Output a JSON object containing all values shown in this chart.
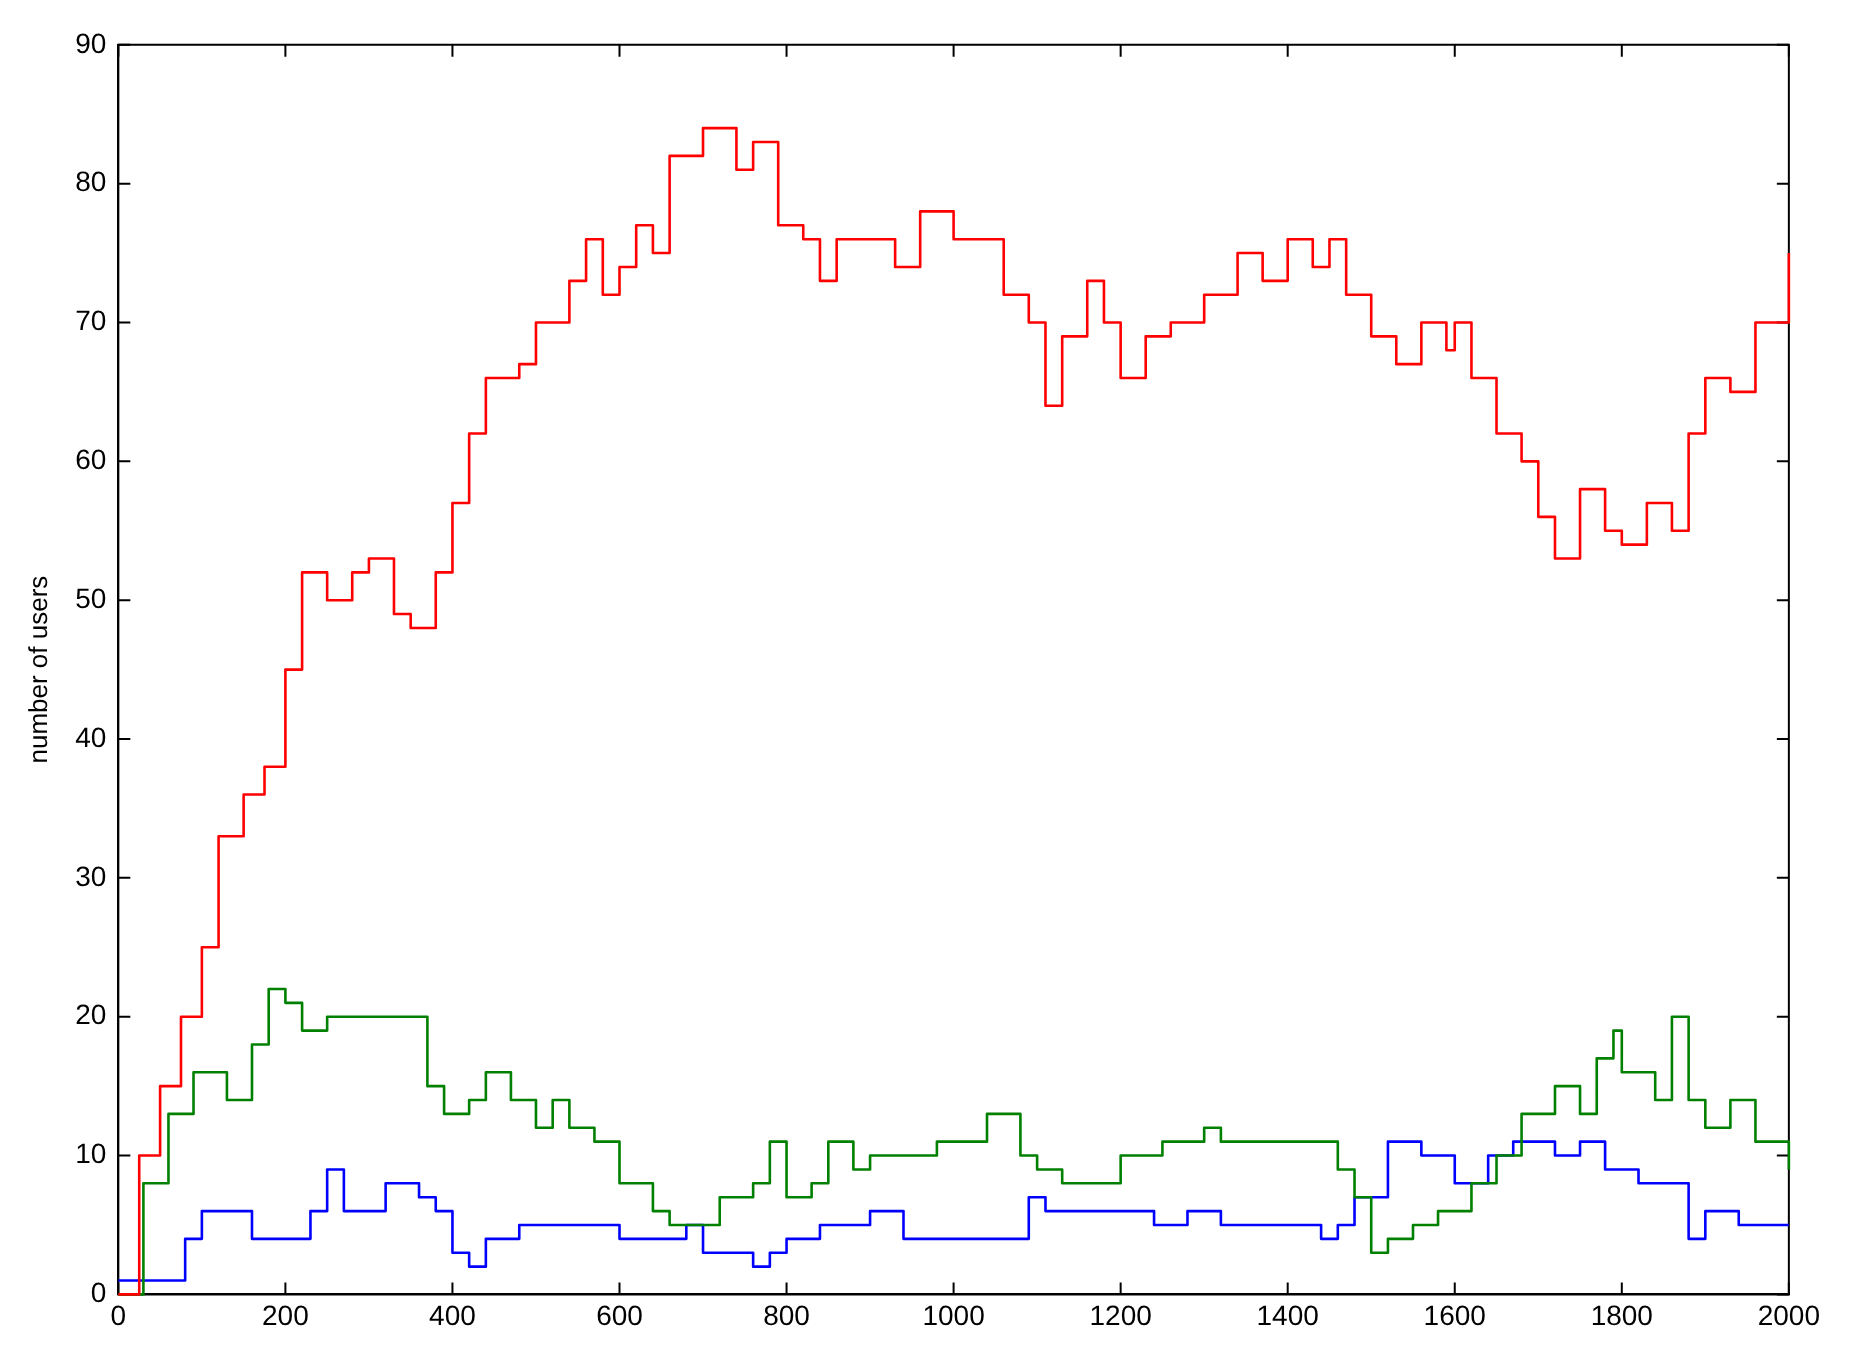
{
  "chart_data": {
    "type": "step",
    "ylabel": "number of users",
    "xlim": [
      0,
      2000
    ],
    "xticks": [
      0,
      200,
      400,
      600,
      800,
      1000,
      1200,
      1400,
      1600,
      1800,
      2000
    ],
    "ylim": [
      0,
      90
    ],
    "yticks": [
      0,
      10,
      20,
      30,
      40,
      50,
      60,
      70,
      80,
      90
    ],
    "grid": false,
    "legend": false,
    "series": [
      {
        "color": "#ff0000",
        "x": [
          0,
          25,
          50,
          75,
          100,
          120,
          150,
          175,
          200,
          220,
          250,
          280,
          300,
          330,
          350,
          380,
          400,
          420,
          440,
          480,
          500,
          540,
          560,
          580,
          600,
          620,
          640,
          660,
          700,
          740,
          760,
          790,
          820,
          840,
          860,
          900,
          930,
          960,
          1000,
          1040,
          1060,
          1090,
          1110,
          1130,
          1160,
          1180,
          1200,
          1230,
          1260,
          1300,
          1340,
          1370,
          1400,
          1430,
          1450,
          1470,
          1500,
          1530,
          1560,
          1590,
          1600,
          1620,
          1650,
          1680,
          1700,
          1720,
          1750,
          1780,
          1800,
          1830,
          1860,
          1880,
          1900,
          1930,
          1960,
          2000
        ],
        "values": [
          0,
          10,
          15,
          20,
          25,
          33,
          36,
          38,
          45,
          52,
          50,
          52,
          53,
          49,
          48,
          52,
          57,
          62,
          66,
          67,
          70,
          73,
          76,
          72,
          74,
          77,
          75,
          82,
          84,
          81,
          83,
          77,
          76,
          73,
          76,
          76,
          74,
          78,
          76,
          76,
          72,
          70,
          64,
          69,
          73,
          70,
          66,
          69,
          70,
          72,
          75,
          73,
          76,
          74,
          76,
          72,
          69,
          67,
          70,
          68,
          70,
          66,
          62,
          60,
          56,
          53,
          58,
          55,
          54,
          57,
          55,
          62,
          66,
          65,
          70,
          75
        ]
      },
      {
        "color": "#008000",
        "x": [
          0,
          30,
          60,
          90,
          110,
          130,
          160,
          180,
          200,
          220,
          250,
          300,
          350,
          370,
          390,
          420,
          440,
          470,
          500,
          520,
          540,
          570,
          600,
          640,
          660,
          700,
          720,
          760,
          780,
          800,
          830,
          850,
          880,
          900,
          950,
          980,
          1000,
          1040,
          1060,
          1080,
          1100,
          1130,
          1160,
          1190,
          1200,
          1250,
          1300,
          1320,
          1370,
          1400,
          1440,
          1460,
          1480,
          1500,
          1520,
          1550,
          1580,
          1620,
          1650,
          1680,
          1720,
          1750,
          1770,
          1790,
          1800,
          1820,
          1840,
          1860,
          1880,
          1900,
          1930,
          1960,
          2000
        ],
        "values": [
          0,
          8,
          13,
          16,
          16,
          14,
          18,
          22,
          21,
          19,
          20,
          20,
          20,
          15,
          13,
          14,
          16,
          14,
          12,
          14,
          12,
          11,
          8,
          6,
          5,
          5,
          7,
          8,
          11,
          7,
          8,
          11,
          9,
          10,
          10,
          11,
          11,
          13,
          13,
          10,
          9,
          8,
          8,
          8,
          10,
          11,
          12,
          11,
          11,
          11,
          11,
          9,
          7,
          3,
          4,
          5,
          6,
          8,
          10,
          13,
          15,
          13,
          17,
          19,
          16,
          16,
          14,
          20,
          14,
          12,
          14,
          11,
          9
        ]
      },
      {
        "color": "#0000ff",
        "x": [
          0,
          60,
          80,
          100,
          130,
          160,
          200,
          230,
          250,
          270,
          300,
          320,
          360,
          380,
          400,
          420,
          440,
          480,
          560,
          600,
          640,
          680,
          700,
          760,
          780,
          800,
          840,
          880,
          900,
          940,
          1000,
          1060,
          1090,
          1110,
          1140,
          1200,
          1240,
          1280,
          1320,
          1400,
          1440,
          1460,
          1480,
          1520,
          1560,
          1600,
          1640,
          1670,
          1720,
          1750,
          1780,
          1820,
          1860,
          1880,
          1900,
          1940,
          2000
        ],
        "values": [
          1,
          1,
          4,
          6,
          6,
          4,
          4,
          6,
          9,
          6,
          6,
          8,
          7,
          6,
          3,
          2,
          4,
          5,
          5,
          4,
          4,
          5,
          3,
          2,
          3,
          4,
          5,
          5,
          6,
          4,
          4,
          4,
          7,
          6,
          6,
          6,
          5,
          6,
          5,
          5,
          4,
          5,
          7,
          11,
          10,
          8,
          10,
          11,
          10,
          11,
          9,
          8,
          8,
          4,
          6,
          5,
          5
        ]
      }
    ]
  }
}
